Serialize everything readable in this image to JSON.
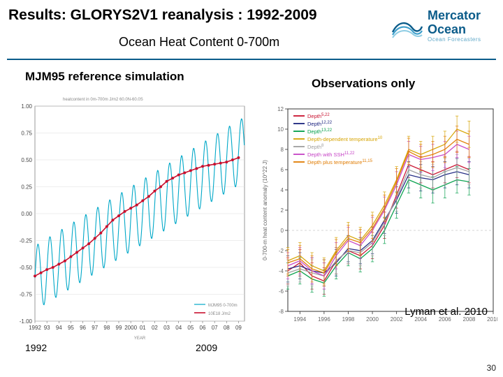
{
  "header": {
    "title": "Results: GLORYS2V1 reanalysis :  1992-2009",
    "subtitle": "Ocean Heat Content  0-700m",
    "brand_top": "Mercator",
    "brand_bottom": "Ocean",
    "brand_sub": "Ocean Forecasters"
  },
  "leftchart": {
    "title": "MJM95 reference simulation",
    "subcap": "heatcontent in 0m-700m J/m2 60.0N-60.0S",
    "xmin": 1992,
    "xmax": 2009.5,
    "xticks": [
      "1992",
      "93",
      "94",
      "95",
      "96",
      "97",
      "98",
      "99",
      "2000",
      "01",
      "02",
      "03",
      "04",
      "05",
      "06",
      "07",
      "08",
      "09"
    ],
    "ymin": -1.0,
    "ymax": 1.0,
    "ytick_step": 0.25,
    "grid_color": "#dddddd",
    "bg": "#ffffff",
    "ylegend_label": "10E18 J/m2",
    "footer_x": "YEAR",
    "label_xstart": "1992",
    "label_xend": "2009",
    "series": {
      "osc": {
        "color": "#00a8c8",
        "width": 1.1,
        "period": 1.0,
        "amplitude": 0.3,
        "phase": 0.0,
        "trend_start": -0.6,
        "trend_end": 0.6
      },
      "smooth": {
        "color": "#c8102e",
        "width": 1.6,
        "marker_size": 2.0,
        "points": [
          [
            1992.0,
            -0.58
          ],
          [
            1992.5,
            -0.55
          ],
          [
            1993.0,
            -0.52
          ],
          [
            1993.5,
            -0.5
          ],
          [
            1994.0,
            -0.47
          ],
          [
            1994.5,
            -0.44
          ],
          [
            1995.0,
            -0.4
          ],
          [
            1995.5,
            -0.36
          ],
          [
            1996.0,
            -0.32
          ],
          [
            1996.5,
            -0.28
          ],
          [
            1997.0,
            -0.23
          ],
          [
            1997.5,
            -0.18
          ],
          [
            1998.0,
            -0.12
          ],
          [
            1998.5,
            -0.06
          ],
          [
            1999.0,
            -0.02
          ],
          [
            1999.5,
            0.02
          ],
          [
            2000.0,
            0.05
          ],
          [
            2000.5,
            0.08
          ],
          [
            2001.0,
            0.12
          ],
          [
            2001.5,
            0.16
          ],
          [
            2002.0,
            0.21
          ],
          [
            2002.5,
            0.25
          ],
          [
            2003.0,
            0.3
          ],
          [
            2003.5,
            0.33
          ],
          [
            2004.0,
            0.36
          ],
          [
            2004.5,
            0.38
          ],
          [
            2005.0,
            0.4
          ],
          [
            2005.5,
            0.42
          ],
          [
            2006.0,
            0.44
          ],
          [
            2006.5,
            0.45
          ],
          [
            2007.0,
            0.46
          ],
          [
            2007.5,
            0.47
          ],
          [
            2008.0,
            0.48
          ],
          [
            2008.5,
            0.5
          ],
          [
            2009.0,
            0.52
          ]
        ]
      }
    }
  },
  "rightchart": {
    "title": "Observations only",
    "citation": "Lyman et al. 2010",
    "xmin": 1993,
    "xmax": 2010,
    "xticks": [
      1994,
      1996,
      1998,
      2000,
      2002,
      2004,
      2006,
      2008,
      2010
    ],
    "ymin": -8,
    "ymax": 12,
    "ytick_step": 2,
    "grid": false,
    "bg": "#ffffff",
    "axis_color": "#333333",
    "ylabel": "0-700-m heat content anomaly (10^22 J)",
    "legend": [
      {
        "label": "Depth",
        "sup": "5,22",
        "color": "#c8102e"
      },
      {
        "label": "Depth",
        "sup": "12,22",
        "color": "#1a237e"
      },
      {
        "label": "Depth",
        "sup": "13,22",
        "color": "#009e48"
      },
      {
        "label": "Depth-dependent temperature",
        "sup": "10",
        "color": "#d6a300"
      },
      {
        "label": "Depth",
        "sup": "8",
        "color": "#9e9e9e"
      },
      {
        "label": "Depth with SSH",
        "sup": "11,22",
        "color": "#c542c5"
      },
      {
        "label": "Depth plus temperature",
        "sup": "11,15",
        "color": "#e07b00"
      }
    ],
    "err_half": 1.3,
    "cap": 2.2,
    "series": [
      {
        "color": "#c8102e",
        "values": {
          "1993": -4.0,
          "1994": -3.2,
          "1995": -4.5,
          "1996": -5.0,
          "1997": -3.0,
          "1998": -2.0,
          "1999": -2.5,
          "2000": -1.5,
          "2001": 0.5,
          "2002": 3.5,
          "2003": 6.5,
          "2004": 6.0,
          "2005": 5.5,
          "2006": 6.0,
          "2007": 6.5,
          "2008": 6.0
        }
      },
      {
        "color": "#1a237e",
        "values": {
          "1993": -3.8,
          "1994": -3.5,
          "1995": -4.0,
          "1996": -4.2,
          "1997": -3.2,
          "1998": -1.8,
          "1999": -2.0,
          "2000": -1.0,
          "2001": 1.0,
          "2002": 3.0,
          "2003": 5.5,
          "2004": 5.2,
          "2005": 5.0,
          "2006": 5.5,
          "2007": 5.8,
          "2008": 5.5
        }
      },
      {
        "color": "#009e48",
        "values": {
          "1993": -4.5,
          "1994": -4.0,
          "1995": -4.8,
          "1996": -5.2,
          "1997": -3.5,
          "1998": -2.2,
          "1999": -2.8,
          "2000": -1.8,
          "2001": 0.0,
          "2002": 2.5,
          "2003": 5.0,
          "2004": 4.5,
          "2005": 4.0,
          "2006": 4.5,
          "2007": 5.0,
          "2008": 4.8
        }
      },
      {
        "color": "#d6a300",
        "values": {
          "1993": -3.0,
          "1994": -2.5,
          "1995": -3.5,
          "1996": -4.0,
          "1997": -2.0,
          "1998": -0.5,
          "1999": -1.0,
          "2000": 0.5,
          "2001": 2.5,
          "2002": 5.0,
          "2003": 8.0,
          "2004": 7.5,
          "2005": 8.0,
          "2006": 8.5,
          "2007": 10.0,
          "2008": 9.5
        }
      },
      {
        "color": "#9e9e9e",
        "values": {
          "1993": -4.2,
          "1994": -3.8,
          "1995": -4.2,
          "1996": -4.5,
          "1997": -3.0,
          "1998": -2.0,
          "1999": -2.2,
          "2000": -1.2,
          "2001": 0.8,
          "2002": 3.2,
          "2003": 6.0,
          "2004": 5.5,
          "2005": 5.2,
          "2006": 5.8,
          "2007": 6.2,
          "2008": 5.8
        }
      },
      {
        "color": "#c542c5",
        "values": {
          "1993": -3.5,
          "1994": -3.0,
          "1995": -4.0,
          "1996": -4.5,
          "1997": -2.5,
          "1998": -1.0,
          "1999": -1.5,
          "2000": 0.0,
          "2001": 2.0,
          "2002": 4.5,
          "2003": 7.5,
          "2004": 7.0,
          "2005": 7.2,
          "2006": 7.5,
          "2007": 8.5,
          "2008": 8.0
        }
      },
      {
        "color": "#e07b00",
        "values": {
          "1993": -3.2,
          "1994": -2.8,
          "1995": -3.8,
          "1996": -4.2,
          "1997": -2.2,
          "1998": -0.8,
          "1999": -1.2,
          "2000": 0.2,
          "2001": 2.2,
          "2002": 4.8,
          "2003": 7.8,
          "2004": 7.2,
          "2005": 7.5,
          "2006": 8.0,
          "2007": 9.0,
          "2008": 8.5
        }
      }
    ]
  },
  "pagenum": "30"
}
